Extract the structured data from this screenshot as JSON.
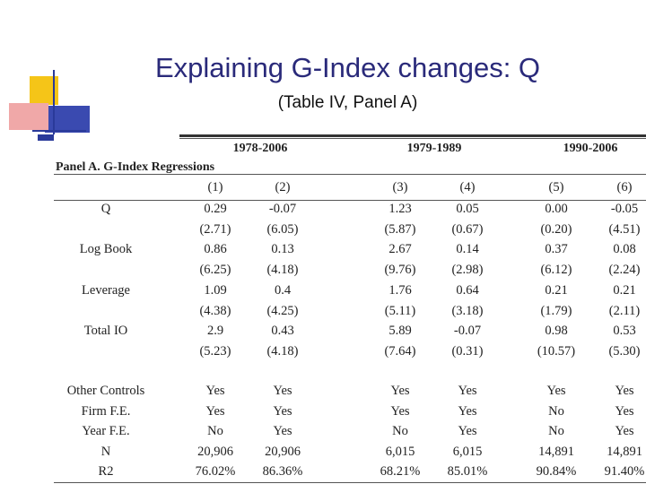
{
  "slide": {
    "title": "Explaining G-Index changes: Q",
    "subtitle": "(Table IV, Panel A)"
  },
  "table": {
    "periods": [
      "1978-2006",
      "1979-1989",
      "1990-2006"
    ],
    "panel_label": "Panel A. G-Index Regressions",
    "columns": [
      "(1)",
      "(2)",
      "(3)",
      "(4)",
      "(5)",
      "(6)"
    ],
    "rows": [
      {
        "label": "Q",
        "cells": [
          "0.29",
          "-0.07",
          "1.23",
          "0.05",
          "0.00",
          "-0.05"
        ]
      },
      {
        "label": "",
        "cells": [
          "(2.71)",
          "(6.05)",
          "(5.87)",
          "(0.67)",
          "(0.20)",
          "(4.51)"
        ]
      },
      {
        "label": "Log Book",
        "cells": [
          "0.86",
          "0.13",
          "2.67",
          "0.14",
          "0.37",
          "0.08"
        ]
      },
      {
        "label": "",
        "cells": [
          "(6.25)",
          "(4.18)",
          "(9.76)",
          "(2.98)",
          "(6.12)",
          "(2.24)"
        ]
      },
      {
        "label": "Leverage",
        "cells": [
          "1.09",
          "0.4",
          "1.76",
          "0.64",
          "0.21",
          "0.21"
        ]
      },
      {
        "label": "",
        "cells": [
          "(4.38)",
          "(4.25)",
          "(5.11)",
          "(3.18)",
          "(1.79)",
          "(2.11)"
        ]
      },
      {
        "label": "Total IO",
        "cells": [
          "2.9",
          "0.43",
          "5.89",
          "-0.07",
          "0.98",
          "0.53"
        ]
      },
      {
        "label": "",
        "cells": [
          "(5.23)",
          "(4.18)",
          "(7.64)",
          "(0.31)",
          "(10.57)",
          "(5.30)"
        ]
      },
      {
        "label": "Other Controls",
        "cells": [
          "Yes",
          "Yes",
          "Yes",
          "Yes",
          "Yes",
          "Yes"
        ]
      },
      {
        "label": "Firm F.E.",
        "cells": [
          "Yes",
          "Yes",
          "Yes",
          "Yes",
          "No",
          "Yes"
        ]
      },
      {
        "label": "Year F.E.",
        "cells": [
          "No",
          "Yes",
          "No",
          "Yes",
          "No",
          "Yes"
        ]
      },
      {
        "label": "N",
        "cells": [
          "20,906",
          "20,906",
          "6,015",
          "6,015",
          "14,891",
          "14,891"
        ]
      },
      {
        "label": "R2",
        "cells": [
          "76.02%",
          "86.36%",
          "68.21%",
          "85.01%",
          "90.84%",
          "91.40%"
        ]
      }
    ]
  },
  "colors": {
    "title": "#2a2a7a",
    "logo_yellow": "#f5c518",
    "logo_red": "#e8372c",
    "logo_blue": "#2a3a9a"
  }
}
